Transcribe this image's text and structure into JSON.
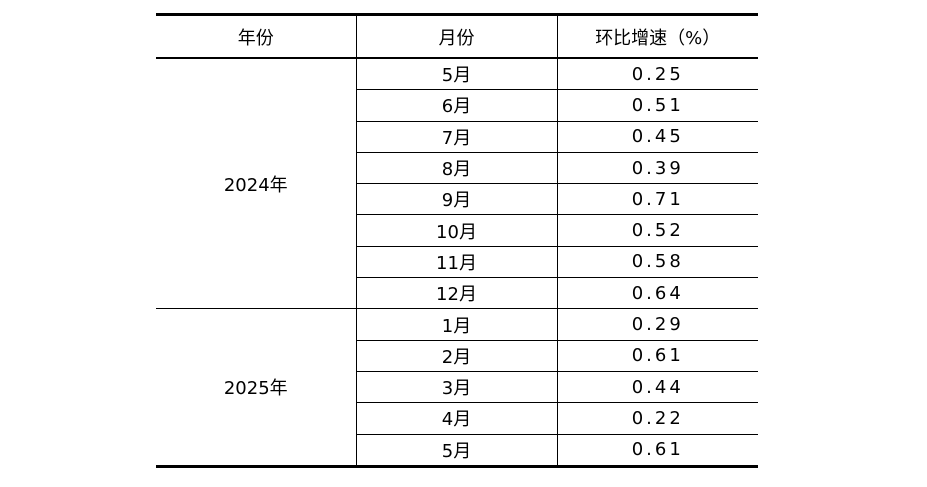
{
  "table": {
    "headers": [
      "年份",
      "月份",
      "环比增速（%）"
    ],
    "groups": [
      {
        "year": "2024年",
        "rows": [
          {
            "month": "5月",
            "value": "0.25"
          },
          {
            "month": "6月",
            "value": "0.51"
          },
          {
            "month": "7月",
            "value": "0.45"
          },
          {
            "month": "8月",
            "value": "0.39"
          },
          {
            "month": "9月",
            "value": "0.71"
          },
          {
            "month": "10月",
            "value": "0.52"
          },
          {
            "month": "11月",
            "value": "0.58"
          },
          {
            "month": "12月",
            "value": "0.64"
          }
        ]
      },
      {
        "year": "2025年",
        "rows": [
          {
            "month": "1月",
            "value": "0.29"
          },
          {
            "month": "2月",
            "value": "0.61"
          },
          {
            "month": "3月",
            "value": "0.44"
          },
          {
            "month": "4月",
            "value": "0.22"
          },
          {
            "month": "5月",
            "value": "0.61"
          }
        ]
      }
    ]
  }
}
